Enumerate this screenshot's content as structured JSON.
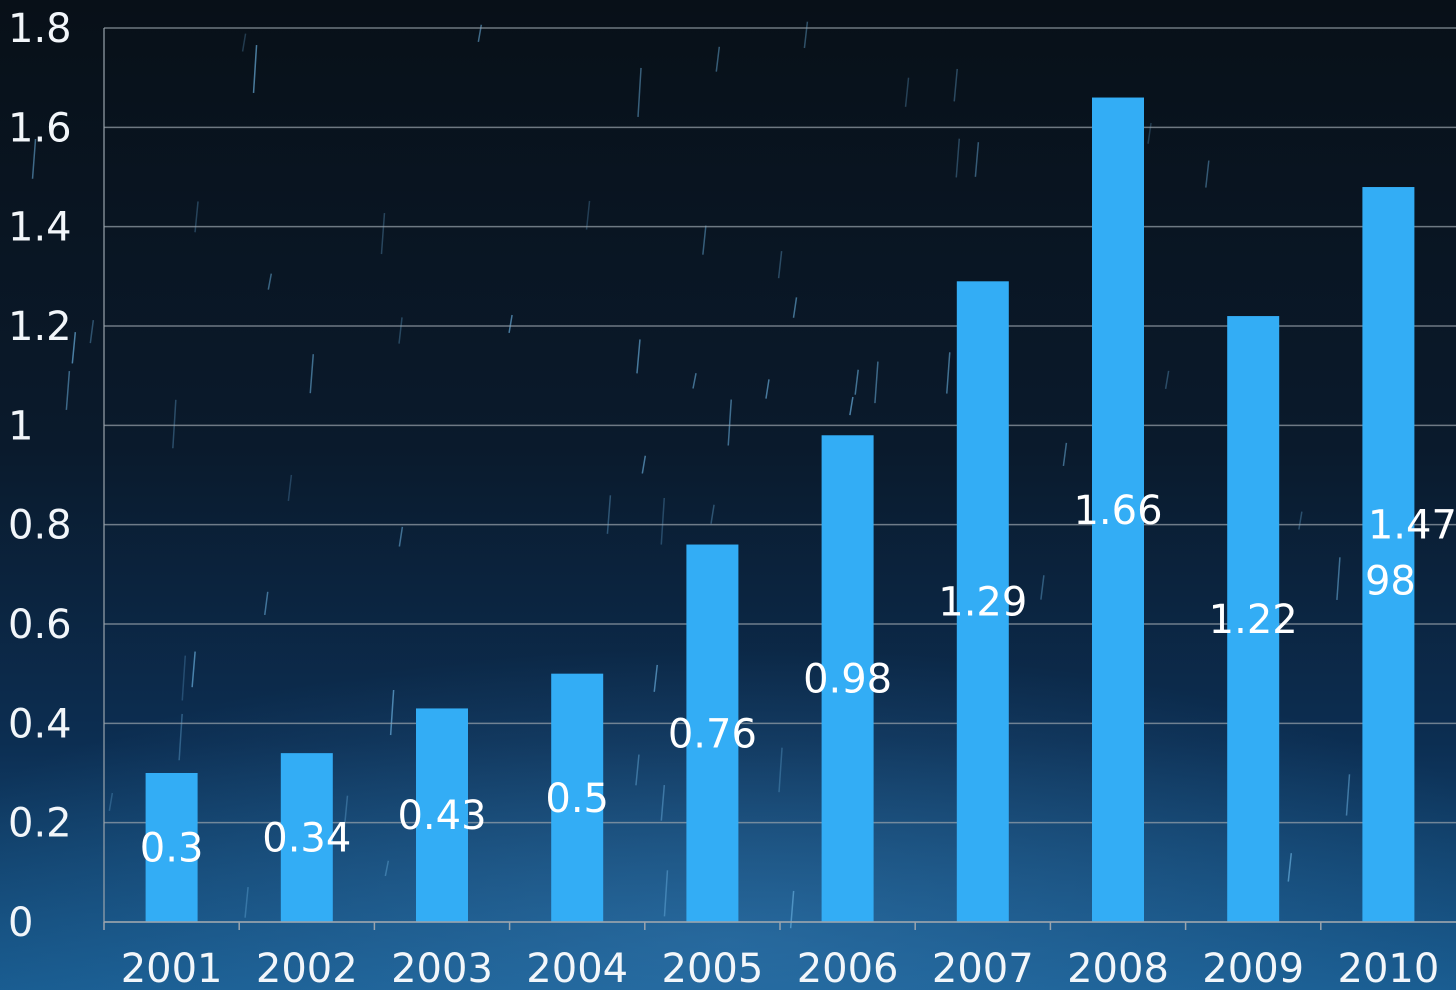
{
  "colors": {
    "bar": "#33adf5",
    "grid": "#9aa4ad",
    "text": "#f2f6fa",
    "bg_top": "#0a1420",
    "bg_bottom": "#0d3b66"
  },
  "chart_data": {
    "type": "bar",
    "categories": [
      "2001",
      "2002",
      "2003",
      "2004",
      "2005",
      "2006",
      "2007",
      "2008",
      "2009",
      "2010"
    ],
    "values": [
      0.3,
      0.34,
      0.43,
      0.5,
      0.76,
      0.98,
      1.29,
      1.66,
      1.22,
      1.4798
    ],
    "data_labels": [
      "0.3",
      "0.34",
      "0.43",
      "0.5",
      "0.76",
      "0.98",
      "1.29",
      "1.66",
      "1.22",
      "1.4798"
    ],
    "yticks": [
      "0",
      "0.2",
      "0.4",
      "0.6",
      "0.8",
      "1",
      "1.2",
      "1.4",
      "1.6",
      "1.8"
    ],
    "ylim": [
      0,
      1.8
    ],
    "title": "",
    "xlabel": "",
    "ylabel": "",
    "grid": true,
    "legend": "none"
  }
}
